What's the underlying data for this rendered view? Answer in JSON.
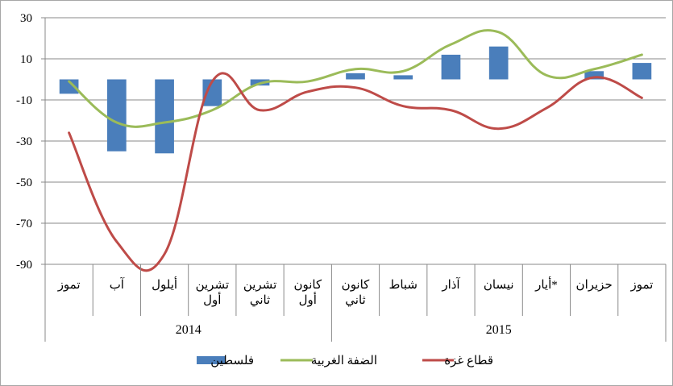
{
  "chart_data": {
    "type": "bar",
    "categories": [
      [
        "تموز"
      ],
      [
        "آب"
      ],
      [
        "أيلول"
      ],
      [
        "تشرين",
        "أول"
      ],
      [
        "تشرين",
        "ثاني"
      ],
      [
        "كانون",
        "أول"
      ],
      [
        "كانون",
        "ثاني"
      ],
      [
        "شباط"
      ],
      [
        "آذار"
      ],
      [
        "نيسان"
      ],
      [
        "أيار*"
      ],
      [
        "حزيران"
      ],
      [
        "تموز"
      ]
    ],
    "year_groups": [
      {
        "label": "2014",
        "start": 0,
        "end": 5
      },
      {
        "label": "2015",
        "start": 6,
        "end": 12
      }
    ],
    "series": [
      {
        "name": "فلسطين",
        "type": "bar",
        "color": "#4a7ebb",
        "values": [
          -7,
          -35,
          -36,
          -13,
          -3,
          0,
          3,
          2,
          12,
          16,
          0,
          4,
          8
        ]
      },
      {
        "name": "الضفة الغربية",
        "type": "line",
        "color": "#9bbb59",
        "values": [
          -1,
          -21,
          -21,
          -15,
          -2,
          -1,
          5,
          4,
          17,
          23,
          2,
          5,
          12
        ]
      },
      {
        "name": "قطاع غزة",
        "type": "line",
        "color": "#be4b48",
        "values": [
          -26,
          -79,
          -85,
          -1,
          -15,
          -6,
          -4,
          -13,
          -15,
          -24,
          -14,
          1,
          -9
        ]
      }
    ],
    "ylim": [
      -90,
      30
    ],
    "yticks": [
      30,
      10,
      -10,
      -30,
      -50,
      -70,
      -90
    ],
    "grid": true,
    "legend": "bottom-center",
    "title": "",
    "xlabel": "",
    "ylabel": ""
  }
}
